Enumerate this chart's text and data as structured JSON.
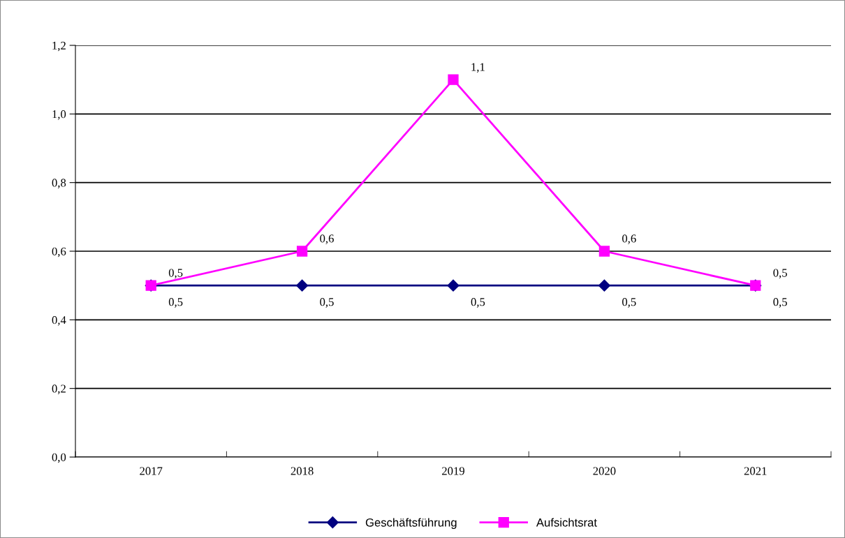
{
  "chart_data": {
    "type": "line",
    "categories": [
      "2017",
      "2018",
      "2019",
      "2020",
      "2021"
    ],
    "series": [
      {
        "name": "Geschäftsführung",
        "color": "#000080",
        "marker": "diamond",
        "values": [
          0.5,
          0.5,
          0.5,
          0.5,
          0.5
        ],
        "value_labels": [
          "0,5",
          "0,5",
          "0,5",
          "0,5",
          "0,5"
        ]
      },
      {
        "name": "Aufsichtsrat",
        "color": "#ff00ff",
        "marker": "square",
        "values": [
          0.5,
          0.6,
          1.1,
          0.6,
          0.5
        ],
        "value_labels": [
          "0,5",
          "0,6",
          "1,1",
          "0,6",
          "0,5"
        ]
      }
    ],
    "ylim": [
      0,
      1.2
    ],
    "yticks": [
      {
        "value": 0,
        "label": "0,0"
      },
      {
        "value": 0.2,
        "label": "0,2"
      },
      {
        "value": 0.4,
        "label": "0,4"
      },
      {
        "value": 0.6,
        "label": "0,6"
      },
      {
        "value": 0.8,
        "label": "0,8"
      },
      {
        "value": 1.0,
        "label": "1,0"
      },
      {
        "value": 1.2,
        "label": "1,2"
      }
    ],
    "grid": "y",
    "legend": "bottom",
    "line_style": "solid"
  }
}
